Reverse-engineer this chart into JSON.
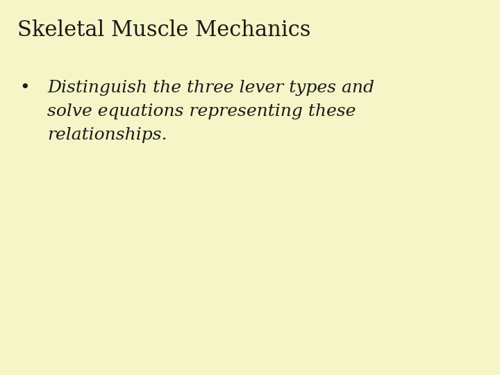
{
  "background_color": "#f5f5c8",
  "title": "Skeletal Muscle Mechanics",
  "title_fontsize": 22,
  "title_color": "#1a1a1a",
  "bullet_lines": [
    "Distinguish the three lever types and",
    "solve equations representing these",
    "relationships."
  ],
  "bullet_fontsize": 18,
  "bullet_color": "#1a1a1a",
  "bullet_char": "•",
  "font_style": "italic",
  "title_font_family": "serif",
  "bullet_font_family": "serif"
}
